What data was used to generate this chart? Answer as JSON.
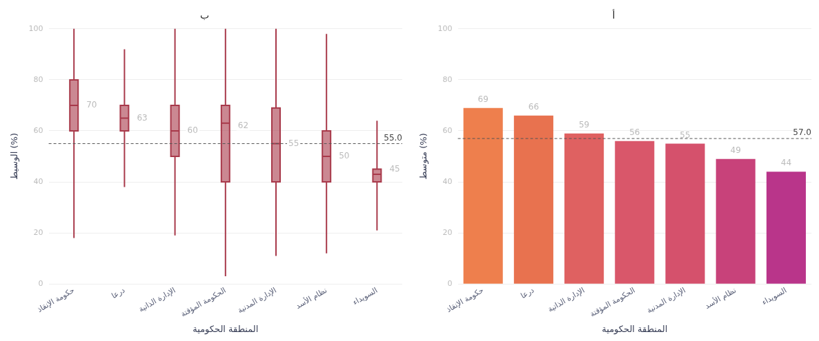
{
  "chart_data": [
    {
      "type": "box",
      "title": "ب",
      "xlabel": "المنطقة الحكومية",
      "ylabel": "الوسيط (%)",
      "categories": [
        "حكومة الإنقاذ",
        "درعا",
        "الإدارة الذاتية",
        "الحكومة المؤقتة",
        "الإدارة المدنية",
        "نظام الأسد",
        "السويداء"
      ],
      "color": "#a8394a",
      "boxes": [
        {
          "low": 18,
          "q1": 60,
          "median": 70,
          "q3": 80,
          "high": 100
        },
        {
          "low": 38,
          "q1": 60,
          "median": 65,
          "q3": 70,
          "high": 92
        },
        {
          "low": 19,
          "q1": 50,
          "median": 60,
          "q3": 70,
          "high": 100
        },
        {
          "low": 3,
          "q1": 40,
          "median": 63,
          "q3": 70,
          "high": 100
        },
        {
          "low": 11,
          "q1": 40,
          "median": 55,
          "q3": 69,
          "high": 100
        },
        {
          "low": 12,
          "q1": 40,
          "median": 50,
          "q3": 60,
          "high": 98
        },
        {
          "low": 21,
          "q1": 40,
          "median": 43,
          "q3": 45,
          "high": 64
        }
      ],
      "annotations": [
        {
          "text": "70",
          "x": "حكومة الإنقاذ",
          "y": 70
        },
        {
          "text": "63",
          "x": "درعا",
          "y": 65
        },
        {
          "text": "60",
          "x": "الإدارة الذاتية",
          "y": 60
        },
        {
          "text": "62",
          "x": "الحكومة المؤقتة",
          "y": 62
        },
        {
          "text": "55",
          "x": "الإدارة المدنية",
          "y": 55
        },
        {
          "text": "50",
          "x": "نظام الأسد",
          "y": 50
        },
        {
          "text": "45",
          "x": "السويداء",
          "y": 45
        }
      ],
      "ref_lines": [
        {
          "axis": "y",
          "value": 55,
          "label": "55.0",
          "color": "#555555",
          "line_style": "dashed"
        }
      ],
      "ylim": [
        0,
        100
      ],
      "yticks": [
        0,
        20,
        40,
        60,
        80,
        100
      ],
      "grid": "y",
      "legend": false
    },
    {
      "type": "bar",
      "title": "أ",
      "xlabel": "المنطقة الحكومية",
      "ylabel": "متوسط (%)",
      "categories": [
        "حكومة الإنقاذ",
        "درعا",
        "الإدارة الذاتية",
        "الحكومة المؤقتة",
        "الإدارة المدنية",
        "نظام الأسد",
        "السويداء"
      ],
      "values": [
        69,
        66,
        59,
        56,
        55,
        49,
        44
      ],
      "colors": [
        "#ee7f4d",
        "#e8724f",
        "#df6161",
        "#d9576a",
        "#d5516c",
        "#c8427a",
        "#b9358a"
      ],
      "data_labels": true,
      "ref_lines": [
        {
          "axis": "y",
          "value": 57,
          "label": "57.0",
          "color": "#555555",
          "line_style": "dashed"
        }
      ],
      "ylim": [
        0,
        100
      ],
      "yticks": [
        0,
        20,
        40,
        60,
        80,
        100
      ],
      "grid": "y",
      "legend": false
    }
  ]
}
